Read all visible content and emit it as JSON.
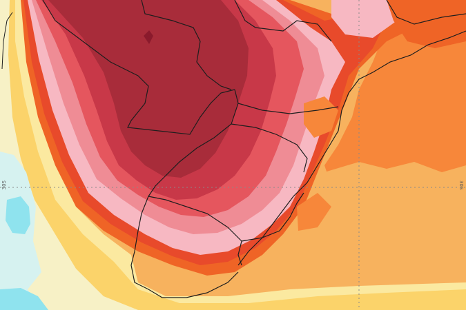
{
  "map": {
    "grid_labels": {
      "left": "30S",
      "right": "30S"
    },
    "palette": {
      "cyan": "#8fe3ee",
      "pale_blue": "#d6f2f0",
      "cream": "#f7f1c6",
      "light_yellow": "#fbe9a0",
      "yellow": "#fbd36a",
      "light_orange": "#f7b25e",
      "orange": "#f7873a",
      "dark_orange": "#ef6426",
      "red_orange": "#e84a2b",
      "pink": "#f7b8c2",
      "rose": "#ef8c95",
      "salmon_red": "#e5565e",
      "crimson": "#c83848",
      "dark_red": "#a82c3a",
      "maroon": "#8a1a2c",
      "border": "#1e1e1e",
      "grid": "#8a8a8a"
    }
  }
}
